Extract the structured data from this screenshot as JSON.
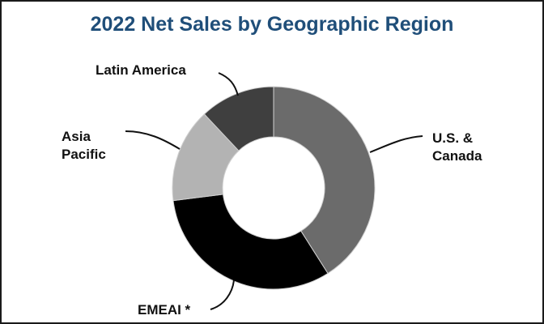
{
  "chart_data": {
    "type": "pie",
    "title": "2022 Net Sales by Geographic Region",
    "categories": [
      "U.S. & Canada",
      "EMEAI *",
      "Asia Pacific",
      "Latin America"
    ],
    "values": [
      41,
      32,
      15,
      12
    ],
    "colors": [
      "#6b6b6b",
      "#000000",
      "#b3b3b3",
      "#3f3f3f"
    ],
    "donut": true
  },
  "labels": {
    "us_canada_line1": "U.S. &",
    "us_canada_line2": "Canada",
    "emeai": "EMEAI *",
    "asia_line1": "Asia",
    "asia_line2": "Pacific",
    "latin_america": "Latin America"
  },
  "colors": {
    "title": "#1f4e79",
    "frame": "#1a1a1a",
    "slice_border": "#d0d0d0"
  }
}
